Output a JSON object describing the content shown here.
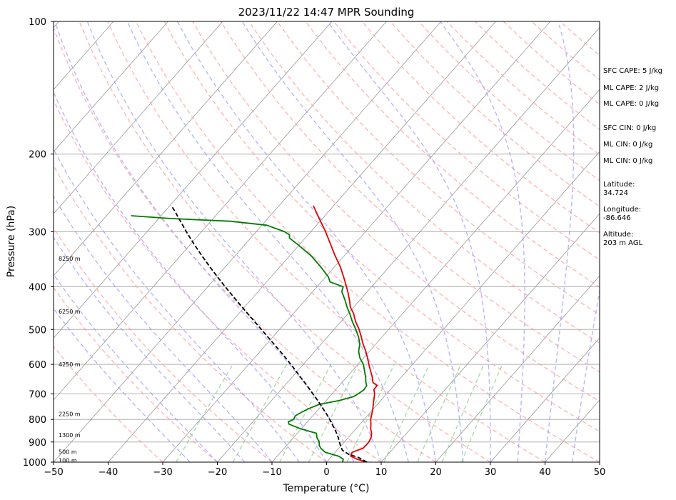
{
  "chart_data": {
    "type": "line",
    "title": "2023/11/22 14:47 MPR Sounding",
    "xlabel": "Temperature (°C)",
    "ylabel": "Pressure (hPa)",
    "xlim": [
      -50,
      50
    ],
    "ylim": [
      1000,
      100
    ],
    "y_scale": "log",
    "skew": true,
    "grid": true,
    "x_ticks": [
      "−50",
      "−40",
      "−30",
      "−20",
      "−10",
      "0",
      "10",
      "20",
      "30",
      "40",
      "50"
    ],
    "x_tick_values": [
      -50,
      -40,
      -30,
      -20,
      -10,
      0,
      10,
      20,
      30,
      40,
      50
    ],
    "y_ticks": [
      "100",
      "200",
      "300",
      "400",
      "500",
      "600",
      "700",
      "800",
      "900",
      "1000"
    ],
    "y_tick_values": [
      100,
      200,
      300,
      400,
      500,
      600,
      700,
      800,
      900,
      1000
    ],
    "series": [
      {
        "role": "temperature",
        "color": "#e00000",
        "style": "solid",
        "points": [
          [
            1000,
            7.4
          ],
          [
            985,
            5.2
          ],
          [
            970,
            3.5
          ],
          [
            950,
            3.1
          ],
          [
            930,
            4.4
          ],
          [
            915,
            4.5
          ],
          [
            900,
            4.5
          ],
          [
            880,
            4.2
          ],
          [
            860,
            3.6
          ],
          [
            840,
            2.7
          ],
          [
            820,
            2.0
          ],
          [
            800,
            1.2
          ],
          [
            780,
            0.6
          ],
          [
            760,
            0.0
          ],
          [
            730,
            -1.1
          ],
          [
            700,
            -2.2
          ],
          [
            685,
            -3.0
          ],
          [
            670,
            -3.1
          ],
          [
            660,
            -4.3
          ],
          [
            640,
            -5.4
          ],
          [
            620,
            -6.7
          ],
          [
            600,
            -8.0
          ],
          [
            580,
            -9.3
          ],
          [
            560,
            -10.7
          ],
          [
            540,
            -12.3
          ],
          [
            520,
            -13.8
          ],
          [
            500,
            -15.4
          ],
          [
            480,
            -17.3
          ],
          [
            460,
            -19.0
          ],
          [
            445,
            -20.6
          ],
          [
            430,
            -21.8
          ],
          [
            410,
            -23.6
          ],
          [
            400,
            -24.6
          ],
          [
            380,
            -26.7
          ],
          [
            360,
            -29.0
          ],
          [
            340,
            -31.7
          ],
          [
            320,
            -34.4
          ],
          [
            300,
            -37.3
          ],
          [
            290,
            -38.9
          ],
          [
            280,
            -40.6
          ],
          [
            270,
            -42.3
          ],
          [
            262,
            -43.7
          ]
        ]
      },
      {
        "role": "dewpoint",
        "color": "#007a00",
        "style": "solid",
        "points": [
          [
            1000,
            2.9
          ],
          [
            985,
            2.6
          ],
          [
            970,
            1.3
          ],
          [
            950,
            -1.8
          ],
          [
            930,
            -3.3
          ],
          [
            915,
            -4.1
          ],
          [
            900,
            -4.6
          ],
          [
            880,
            -5.7
          ],
          [
            860,
            -6.5
          ],
          [
            840,
            -10.1
          ],
          [
            820,
            -13.0
          ],
          [
            810,
            -13.5
          ],
          [
            800,
            -12.9
          ],
          [
            785,
            -13.2
          ],
          [
            770,
            -12.6
          ],
          [
            755,
            -11.8
          ],
          [
            740,
            -10.7
          ],
          [
            725,
            -7.6
          ],
          [
            710,
            -5.6
          ],
          [
            700,
            -5.2
          ],
          [
            685,
            -4.8
          ],
          [
            670,
            -5.0
          ],
          [
            660,
            -5.6
          ],
          [
            640,
            -6.6
          ],
          [
            620,
            -7.8
          ],
          [
            600,
            -9.0
          ],
          [
            580,
            -10.7
          ],
          [
            560,
            -12.0
          ],
          [
            540,
            -12.9
          ],
          [
            520,
            -14.3
          ],
          [
            500,
            -16.0
          ],
          [
            480,
            -17.9
          ],
          [
            460,
            -19.7
          ],
          [
            445,
            -21.2
          ],
          [
            430,
            -22.6
          ],
          [
            410,
            -24.7
          ],
          [
            400,
            -25.2
          ],
          [
            390,
            -28.4
          ],
          [
            380,
            -29.5
          ],
          [
            360,
            -32.6
          ],
          [
            340,
            -36.1
          ],
          [
            320,
            -40.5
          ],
          [
            310,
            -42.9
          ],
          [
            305,
            -43.4
          ],
          [
            300,
            -44.8
          ],
          [
            290,
            -49.1
          ],
          [
            284,
            -56.5
          ],
          [
            280,
            -67.9
          ],
          [
            276,
            -75.5
          ]
        ]
      },
      {
        "role": "parcel",
        "color": "#000000",
        "style": "dashed",
        "points": [
          [
            1000,
            7.4
          ],
          [
            975,
            5.0
          ],
          [
            960,
            2.8
          ],
          [
            940,
            1.0
          ],
          [
            920,
            0.0
          ],
          [
            900,
            -0.9
          ],
          [
            880,
            -1.8
          ],
          [
            860,
            -2.8
          ],
          [
            840,
            -3.9
          ],
          [
            820,
            -5.1
          ],
          [
            800,
            -6.3
          ],
          [
            780,
            -7.6
          ],
          [
            760,
            -9.0
          ],
          [
            740,
            -10.4
          ],
          [
            720,
            -11.9
          ],
          [
            700,
            -13.5
          ],
          [
            680,
            -15.1
          ],
          [
            660,
            -16.8
          ],
          [
            640,
            -18.6
          ],
          [
            620,
            -20.4
          ],
          [
            600,
            -22.3
          ],
          [
            580,
            -24.3
          ],
          [
            560,
            -26.4
          ],
          [
            540,
            -28.6
          ],
          [
            520,
            -30.9
          ],
          [
            500,
            -33.3
          ],
          [
            480,
            -35.8
          ],
          [
            460,
            -38.4
          ],
          [
            440,
            -41.1
          ],
          [
            420,
            -43.9
          ],
          [
            400,
            -46.8
          ],
          [
            380,
            -49.8
          ],
          [
            360,
            -52.9
          ],
          [
            340,
            -56.1
          ],
          [
            320,
            -59.4
          ],
          [
            300,
            -62.8
          ],
          [
            290,
            -64.5
          ],
          [
            280,
            -66.3
          ],
          [
            270,
            -68.1
          ],
          [
            262,
            -69.7
          ]
        ]
      }
    ],
    "background_lines": {
      "isotherms_color": "#999999",
      "dry_adiabats_color": "#ff9999",
      "moist_adiabats_color": "#9999ff",
      "mixing_ratio_color": "#88cc88"
    },
    "height_labels": [
      {
        "text": "100 m",
        "p": 990
      },
      {
        "text": "500 m",
        "p": 948
      },
      {
        "text": "1300 m",
        "p": 868
      },
      {
        "text": "2250 m",
        "p": 778
      },
      {
        "text": "4250 m",
        "p": 600
      },
      {
        "text": "6250 m",
        "p": 455
      },
      {
        "text": "8250 m",
        "p": 345
      }
    ],
    "annotations": [
      "SFC CAPE: 5 J/kg",
      "ML CAPE: 2 J/kg",
      "ML CAPE: 0 J/kg",
      "SFC CIN: 0 J/kg",
      "ML CIN: 0 J/kg",
      "ML CIN: 0 J/kg",
      "Latitude:",
      "34.724",
      "Longitude:",
      "-86.646",
      "Altitude:",
      "203 m AGL"
    ]
  }
}
